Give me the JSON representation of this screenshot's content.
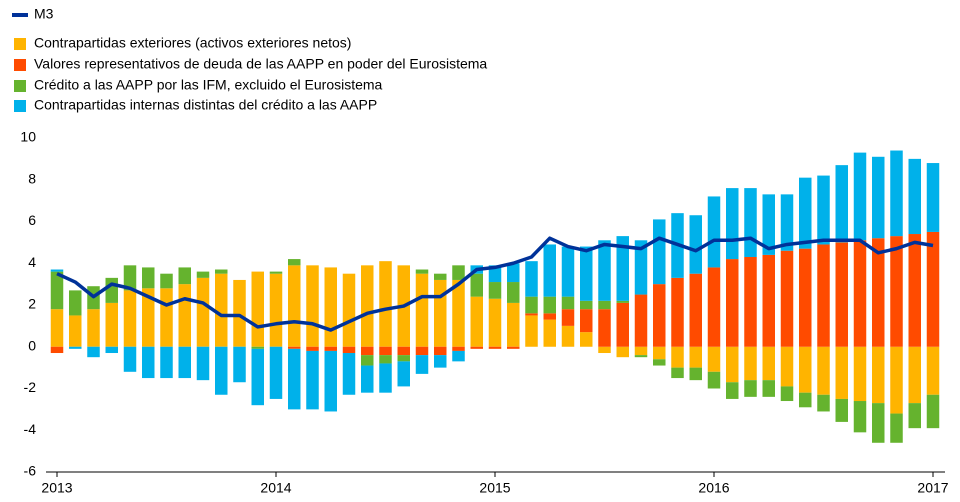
{
  "chart_data": {
    "type": "bar",
    "categories": [
      "2013",
      null,
      null,
      null,
      null,
      null,
      null,
      null,
      null,
      null,
      null,
      null,
      "2014",
      null,
      null,
      null,
      null,
      null,
      null,
      null,
      null,
      null,
      null,
      null,
      "2015",
      null,
      null,
      null,
      null,
      null,
      null,
      null,
      null,
      null,
      null,
      null,
      "2016",
      null,
      null,
      null,
      null,
      null,
      null,
      null,
      null,
      null,
      null,
      null,
      "2017"
    ],
    "series": [
      {
        "name": "M3",
        "type": "line",
        "color": "#003299",
        "values": [
          3.5,
          3.1,
          2.4,
          3.0,
          2.8,
          2.4,
          2.0,
          2.3,
          2.1,
          1.5,
          1.5,
          0.95,
          1.1,
          1.2,
          1.1,
          0.8,
          1.2,
          1.6,
          1.8,
          1.95,
          2.4,
          2.4,
          3.0,
          3.7,
          3.8,
          4.0,
          4.3,
          5.2,
          4.8,
          4.6,
          4.9,
          4.8,
          4.7,
          5.2,
          4.9,
          4.6,
          5.1,
          5.1,
          5.2,
          4.7,
          4.9,
          5.0,
          5.1,
          5.1,
          5.1,
          4.5,
          4.7,
          5.0,
          4.85
        ]
      },
      {
        "name": "Contrapartidas exteriores (activos exteriores netos)",
        "color": "#ffb400",
        "values": [
          1.8,
          1.5,
          1.8,
          2.1,
          2.7,
          2.8,
          2.8,
          3.0,
          3.3,
          3.5,
          3.2,
          3.6,
          3.5,
          3.9,
          3.9,
          3.8,
          3.5,
          3.9,
          4.1,
          3.9,
          3.5,
          3.2,
          3.2,
          2.4,
          2.3,
          2.1,
          1.5,
          1.3,
          1.0,
          0.7,
          -0.3,
          -0.5,
          -0.4,
          -0.6,
          -1.0,
          -1.0,
          -1.2,
          -1.7,
          -1.6,
          -1.6,
          -1.9,
          -2.2,
          -2.3,
          -2.5,
          -2.6,
          -2.7,
          -3.2,
          -2.7,
          -2.3
        ]
      },
      {
        "name": "Valores representativos de deuda de las AAPP en poder del Eurosistema",
        "color": "#ff4b00",
        "values": [
          -0.3,
          0,
          0,
          0,
          0,
          0,
          0,
          0,
          0,
          0,
          0,
          0,
          0,
          -0.1,
          -0.2,
          -0.2,
          -0.3,
          -0.4,
          -0.4,
          -0.4,
          -0.4,
          -0.4,
          -0.2,
          -0.1,
          -0.1,
          -0.1,
          0.1,
          0.3,
          0.8,
          1.1,
          1.8,
          2.1,
          2.5,
          3.0,
          3.3,
          3.5,
          3.8,
          4.2,
          4.3,
          4.4,
          4.6,
          4.7,
          4.9,
          5.0,
          5.1,
          5.2,
          5.3,
          5.4,
          5.5
        ]
      },
      {
        "name": "Crédito a las AAPP por las IFM, excluido el Eurosistema",
        "color": "#65b32e",
        "values": [
          1.8,
          1.2,
          1.1,
          1.2,
          1.2,
          1.0,
          0.7,
          0.8,
          0.3,
          0.2,
          0.0,
          -0.1,
          0.1,
          0.3,
          0,
          0,
          0,
          -0.5,
          -0.4,
          -0.3,
          0.2,
          0.3,
          0.7,
          1.1,
          0.8,
          1.0,
          0.8,
          0.8,
          0.6,
          0.4,
          0.4,
          0.1,
          -0.1,
          -0.3,
          -0.5,
          -0.6,
          -0.8,
          -0.8,
          -0.8,
          -0.8,
          -0.7,
          -0.7,
          -0.8,
          -1.1,
          -1.5,
          -1.9,
          -1.4,
          -1.2,
          -1.6
        ]
      },
      {
        "name": "Contrapartidas internas distintas del crédito a las AAPP",
        "color": "#00b1ea",
        "values": [
          0.1,
          -0.1,
          -0.5,
          -0.3,
          -1.2,
          -1.5,
          -1.5,
          -1.5,
          -1.6,
          -2.3,
          -1.7,
          -2.7,
          -2.5,
          -2.9,
          -2.8,
          -2.9,
          -2.0,
          -1.3,
          -1.4,
          -1.2,
          -0.9,
          -0.6,
          -0.5,
          0.4,
          0.8,
          0.9,
          1.7,
          2.5,
          2.4,
          2.6,
          2.9,
          3.1,
          2.6,
          3.1,
          3.1,
          2.8,
          3.4,
          3.4,
          3.3,
          2.9,
          2.7,
          3.4,
          3.3,
          3.7,
          4.2,
          3.9,
          4.1,
          3.6,
          3.3
        ]
      }
    ],
    "ylim": [
      -6,
      10
    ],
    "yticks": [
      -6,
      -4,
      -2,
      0,
      2,
      4,
      6,
      8,
      10
    ]
  }
}
